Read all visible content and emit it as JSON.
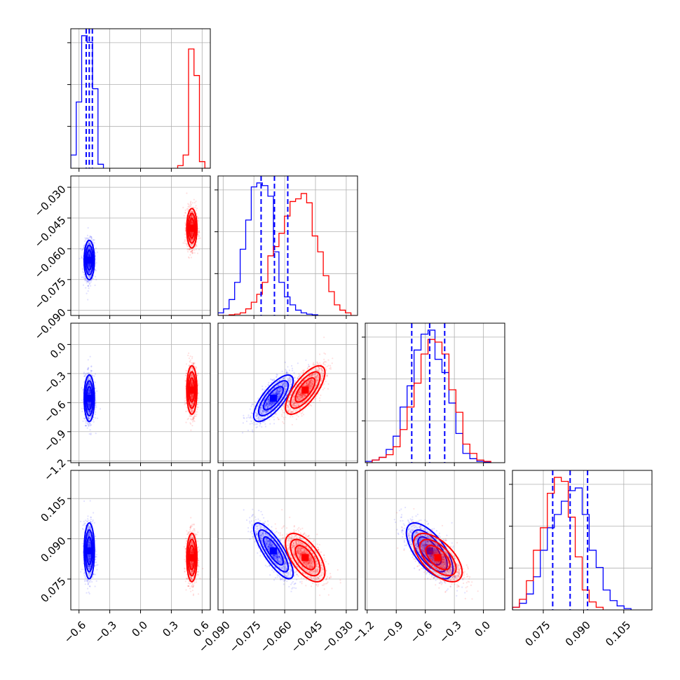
{
  "chart_data": {
    "type": "corner",
    "colors": {
      "blue": "#0000ff",
      "red": "#ff0000"
    },
    "grid": true,
    "params": [
      {
        "id": "p0",
        "lim": [
          -0.68,
          0.68
        ],
        "ticks": [
          "-0.6",
          "-0.3",
          "0.0",
          "0.3",
          "0.6"
        ],
        "tick_values": [
          -0.6,
          -0.3,
          0.0,
          0.3,
          0.6
        ]
      },
      {
        "id": "p1",
        "lim": [
          -0.0925,
          -0.0245
        ],
        "ticks": [
          "-0.090",
          "-0.075",
          "-0.060",
          "-0.045",
          "-0.030"
        ],
        "tick_values": [
          -0.09,
          -0.075,
          -0.06,
          -0.045,
          -0.03
        ]
      },
      {
        "id": "p2",
        "lim": [
          -1.22,
          0.22
        ],
        "ticks": [
          "-1.2",
          "-0.9",
          "-0.6",
          "-0.3",
          "0.0"
        ],
        "tick_values": [
          -1.2,
          -0.9,
          -0.6,
          -0.3,
          0.0
        ]
      },
      {
        "id": "p3",
        "lim": [
          0.0635,
          0.1155
        ],
        "ticks": [
          "0.075",
          "0.090",
          "0.105"
        ],
        "tick_values": [
          0.075,
          0.09,
          0.105
        ]
      }
    ],
    "series": [
      {
        "color": "blue",
        "mean": [
          -0.5,
          -0.0655,
          -0.555,
          0.0855
        ],
        "sd": [
          0.025,
          0.0048,
          0.12,
          0.0052
        ],
        "corr": [
          [
            1,
            0,
            0,
            0
          ],
          [
            0,
            1,
            0.75,
            -0.8
          ],
          [
            0,
            0.75,
            1,
            -0.65
          ],
          [
            0,
            -0.8,
            -0.65,
            1
          ]
        ],
        "quantiles": [
          [
            -0.53,
            -0.5,
            -0.47
          ],
          [
            -0.0715,
            -0.065,
            -0.0585
          ],
          [
            -0.74,
            -0.555,
            -0.4
          ],
          [
            0.0785,
            0.085,
            0.0915
          ]
        ],
        "hist": [
          {
            "edges": [
              -0.68,
              -0.627,
              -0.574,
              -0.521,
              -0.468,
              -0.415,
              -0.362
            ],
            "counts": [
              0.1,
              0.5,
              1.0,
              0.95,
              0.6,
              0.03
            ]
          },
          {
            "edges": [
              -0.0925,
              -0.0898,
              -0.0871,
              -0.0844,
              -0.0817,
              -0.079,
              -0.0763,
              -0.0736,
              -0.0709,
              -0.0682,
              -0.0655,
              -0.0628,
              -0.0601,
              -0.0574,
              -0.0547,
              -0.052,
              -0.0493,
              -0.0466,
              -0.0439
            ],
            "counts": [
              0.02,
              0.05,
              0.12,
              0.25,
              0.5,
              0.72,
              0.97,
              1.0,
              0.98,
              0.9,
              0.48,
              0.25,
              0.14,
              0.08,
              0.04,
              0.02,
              0.01,
              0.005
            ]
          },
          {
            "edges": [
              -1.22,
              -1.148,
              -1.076,
              -1.004,
              -0.932,
              -0.86,
              -0.788,
              -0.716,
              -0.644,
              -0.572,
              -0.5,
              -0.428,
              -0.356,
              -0.284,
              -0.212,
              -0.14,
              -0.068,
              0.004,
              0.076
            ],
            "counts": [
              0.01,
              0.02,
              0.04,
              0.1,
              0.2,
              0.42,
              0.58,
              0.85,
              0.97,
              1.0,
              0.78,
              0.68,
              0.45,
              0.22,
              0.07,
              0.03,
              0.01,
              0.005
            ]
          },
          {
            "edges": [
              0.0635,
              0.0661,
              0.0687,
              0.0713,
              0.0739,
              0.0765,
              0.0791,
              0.0817,
              0.0843,
              0.0869,
              0.0895,
              0.0921,
              0.0947,
              0.0973,
              0.0999,
              0.1025,
              0.1051,
              0.1077
            ],
            "counts": [
              0.02,
              0.05,
              0.12,
              0.25,
              0.45,
              0.62,
              0.72,
              0.82,
              0.9,
              0.92,
              0.72,
              0.45,
              0.32,
              0.15,
              0.07,
              0.03,
              0.01
            ]
          }
        ]
      },
      {
        "color": "red",
        "mean": [
          0.5,
          -0.05,
          -0.47,
          0.083
        ],
        "sd": [
          0.025,
          0.0048,
          0.125,
          0.0045
        ],
        "corr": [
          [
            1,
            0,
            0,
            0
          ],
          [
            0,
            1,
            0.72,
            -0.6
          ],
          [
            0,
            0.72,
            1,
            -0.6
          ],
          [
            0,
            -0.6,
            -0.6,
            1
          ]
        ],
        "hist": [
          {
            "edges": [
              0.362,
              0.415,
              0.468,
              0.521,
              0.574,
              0.627,
              0.68
            ],
            "counts": [
              0.02,
              0.1,
              0.9,
              0.7,
              0.05,
              0.0
            ]
          },
          {
            "edges": [
              -0.0925,
              -0.0898,
              -0.0871,
              -0.0844,
              -0.0817,
              -0.079,
              -0.0763,
              -0.0736,
              -0.0709,
              -0.0682,
              -0.0655,
              -0.0628,
              -0.0601,
              -0.0574,
              -0.0547,
              -0.052,
              -0.0493,
              -0.0466,
              -0.0439,
              -0.0412,
              -0.0385,
              -0.0358,
              -0.0331,
              -0.0304,
              -0.0277,
              -0.025
            ],
            "counts": [
              0.0,
              0.0,
              0.005,
              0.01,
              0.02,
              0.05,
              0.1,
              0.16,
              0.25,
              0.45,
              0.52,
              0.62,
              0.75,
              0.86,
              0.88,
              0.92,
              0.85,
              0.6,
              0.48,
              0.3,
              0.18,
              0.08,
              0.04,
              0.02,
              0.0
            ]
          },
          {
            "edges": [
              -1.22,
              -1.148,
              -1.076,
              -1.004,
              -0.932,
              -0.86,
              -0.788,
              -0.716,
              -0.644,
              -0.572,
              -0.5,
              -0.428,
              -0.356,
              -0.284,
              -0.212,
              -0.14,
              -0.068,
              0.004,
              0.076
            ],
            "counts": [
              0.0,
              0.02,
              0.04,
              0.06,
              0.12,
              0.25,
              0.42,
              0.6,
              0.82,
              0.93,
              0.91,
              0.82,
              0.55,
              0.38,
              0.14,
              0.07,
              0.02,
              0.01
            ]
          },
          {
            "edges": [
              0.0635,
              0.0661,
              0.0687,
              0.0713,
              0.0739,
              0.0765,
              0.0791,
              0.0817,
              0.0843,
              0.0869,
              0.0895,
              0.0921,
              0.0947,
              0.0973
            ],
            "counts": [
              0.02,
              0.08,
              0.22,
              0.45,
              0.62,
              0.88,
              1.0,
              0.97,
              0.7,
              0.4,
              0.15,
              0.06,
              0.02
            ]
          }
        ]
      }
    ]
  }
}
